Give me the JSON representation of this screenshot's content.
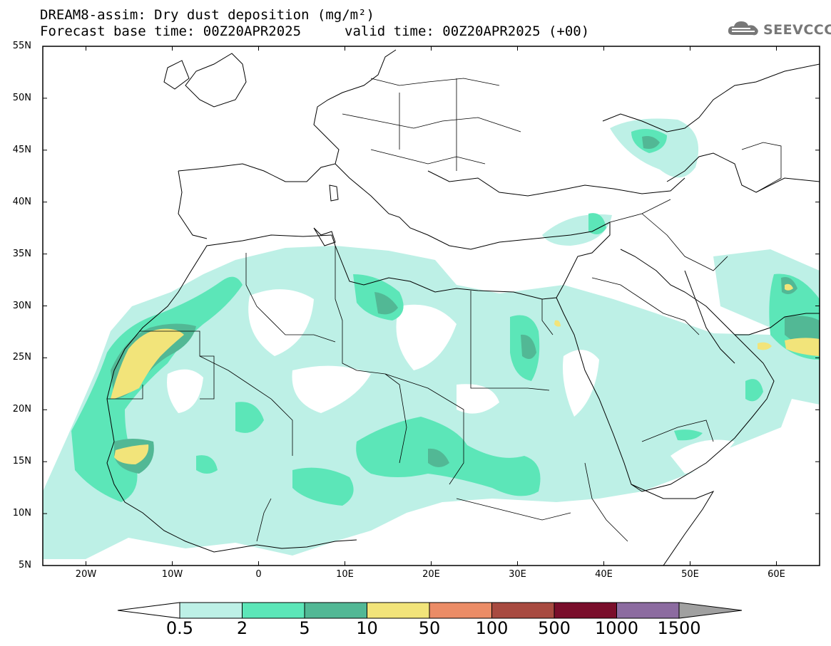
{
  "title": {
    "line1": "DREAM8-assim: Dry dust deposition (mg/m²)",
    "line2_left": "Forecast base time: 00Z20APR2025",
    "line2_right": "valid time: 00Z20APR2025 (+00)"
  },
  "logo": {
    "text": "SEEVCCC",
    "icon": "cloud-icon",
    "color": "#777777"
  },
  "axes": {
    "lat_labels": [
      "55N",
      "50N",
      "45N",
      "40N",
      "35N",
      "30N",
      "25N",
      "20N",
      "15N",
      "10N",
      "5N"
    ],
    "lon_labels": [
      "20W",
      "10W",
      "0",
      "10E",
      "20E",
      "30E",
      "40E",
      "50E",
      "60E"
    ],
    "lon_range": [
      -25,
      65
    ],
    "lat_range": [
      5,
      55
    ]
  },
  "colorbar": {
    "labels": [
      "0.5",
      "2",
      "5",
      "10",
      "50",
      "100",
      "500",
      "1000",
      "1500"
    ],
    "colors": [
      "#bdf0e6",
      "#5ce6b8",
      "#52b895",
      "#f2e47a",
      "#eb8c66",
      "#a84a40",
      "#7a0e2b",
      "#8c6ba0"
    ],
    "under_color": "#ffffff",
    "over_color": "#a0a0a0"
  }
}
